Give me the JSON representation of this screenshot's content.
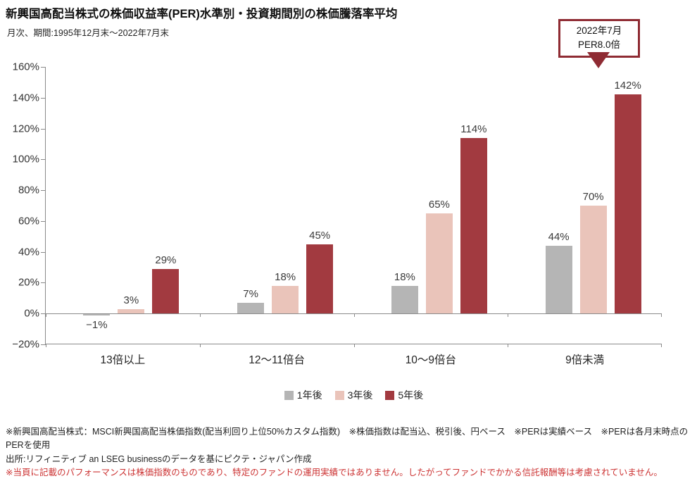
{
  "header": {
    "title": "新興国高配当株式の株価収益率(PER)水準別・投資期間別の株価騰落率平均",
    "subtitle": "月次、期間:1995年12月末～2022年7月末"
  },
  "callout": {
    "line1": "2022年7月",
    "line2": "PER8.0倍"
  },
  "chart_data": {
    "type": "bar",
    "title": "新興国高配当株式の株価収益率(PER)水準別・投資期間別の株価騰落率平均",
    "categories": [
      "13倍以上",
      "12～11倍台",
      "10～9倍台",
      "9倍未満"
    ],
    "series": [
      {
        "name": "1年後",
        "color": "#b5b5b5",
        "values": [
          -1,
          7,
          18,
          44
        ],
        "labels": [
          "−1%",
          "7%",
          "18%",
          "44%"
        ]
      },
      {
        "name": "3年後",
        "color": "#eac4ba",
        "values": [
          3,
          18,
          65,
          70
        ],
        "labels": [
          "3%",
          "18%",
          "65%",
          "70%"
        ]
      },
      {
        "name": "5年後",
        "color": "#a23a40",
        "values": [
          29,
          45,
          114,
          142
        ],
        "labels": [
          "29%",
          "45%",
          "114%",
          "142%"
        ]
      }
    ],
    "ylim": [
      -20,
      160
    ],
    "ytick_step": 20,
    "ytick_suffix": "%",
    "grid": "baseline-and-bottom-only",
    "legend_position": "bottom",
    "annotation": "2022年7月 PER8.0倍"
  },
  "footnotes": {
    "note1": "※新興国高配当株式：MSCI新興国高配当株価指数(配当利回り上位50%カスタム指数)　※株価指数は配当込、税引後、円ベース　※PERは実績ベース　※PERは各月末時点のPERを使用",
    "source": "出所:リフィニティブ an LSEG businessのデータを基にピクテ・ジャパン作成",
    "disclaimer": "※当頁に記載のパフォーマンスは株価指数のものであり、特定のファンドの運用実績ではありません。したがってファンドでかかる信託報酬等は考慮されていません。"
  },
  "colors": {
    "accent_red": "#a23a40",
    "callout_red": "#8f2b33",
    "note_red": "#cc3333",
    "axis_gray": "#8a8a8a"
  }
}
